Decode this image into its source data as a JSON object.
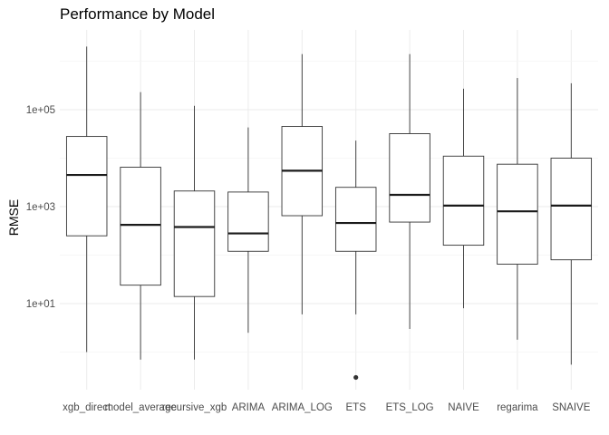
{
  "chart_data": {
    "type": "boxplot",
    "title": "Performance by Model",
    "xlabel": "",
    "ylabel": "RMSE",
    "y_scale": "log10",
    "ylim": [
      0.3,
      3000000
    ],
    "y_ticks": [
      {
        "value": 10,
        "label": "1e+01"
      },
      {
        "value": 1000,
        "label": "1e+03"
      },
      {
        "value": 100000,
        "label": "1e+05"
      }
    ],
    "grid": true,
    "legend": "none",
    "categories": [
      "xgb_direct",
      "model_average",
      "recursive_xgb",
      "ARIMA",
      "ARIMA_LOG",
      "ETS",
      "ETS_LOG",
      "NAIVE",
      "regarima",
      "SNAIVE"
    ],
    "boxes": [
      {
        "min": 1.0,
        "q1": 250,
        "median": 4500,
        "q3": 28000,
        "max": 2000000,
        "outliers": []
      },
      {
        "min": 0.7,
        "q1": 24,
        "median": 420,
        "q3": 6500,
        "max": 230000,
        "outliers": []
      },
      {
        "min": 0.7,
        "q1": 14,
        "median": 380,
        "q3": 2100,
        "max": 120000,
        "outliers": []
      },
      {
        "min": 2.5,
        "q1": 120,
        "median": 280,
        "q3": 2000,
        "max": 43000,
        "outliers": []
      },
      {
        "min": 6,
        "q1": 650,
        "median": 5500,
        "q3": 45000,
        "max": 1400000,
        "outliers": []
      },
      {
        "min": 6,
        "q1": 120,
        "median": 460,
        "q3": 2500,
        "max": 23000,
        "outliers": [
          0.3
        ]
      },
      {
        "min": 3,
        "q1": 480,
        "median": 1750,
        "q3": 32000,
        "max": 1400000,
        "outliers": []
      },
      {
        "min": 8,
        "q1": 160,
        "median": 1050,
        "q3": 11000,
        "max": 270000,
        "outliers": []
      },
      {
        "min": 1.8,
        "q1": 65,
        "median": 800,
        "q3": 7500,
        "max": 450000,
        "outliers": []
      },
      {
        "min": 0.55,
        "q1": 80,
        "median": 1050,
        "q3": 10000,
        "max": 350000,
        "outliers": []
      }
    ]
  }
}
